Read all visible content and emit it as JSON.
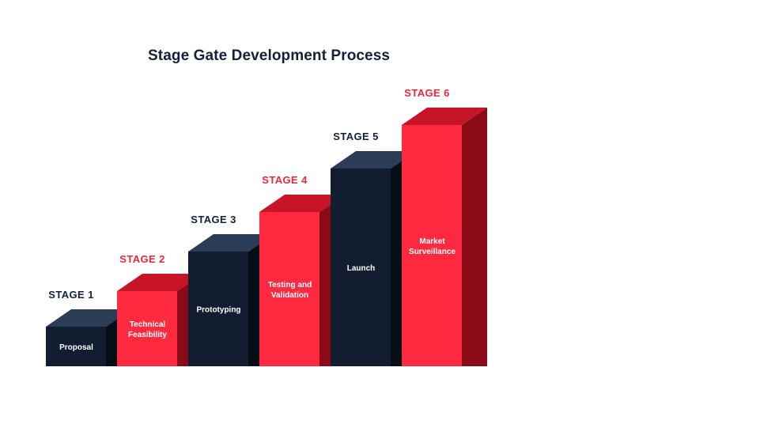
{
  "title": "Stage Gate Development Process",
  "colors": {
    "navy_front": "#121e30",
    "navy_top": "#2a3c56",
    "navy_side": "#070d17",
    "red_front": "#ff2a3f",
    "red_top": "#c81427",
    "red_side": "#8a0a17",
    "label_navy": "#13203a",
    "label_red": "#e8283c"
  },
  "stages": [
    {
      "label": "STAGE 1",
      "text": [
        "Proposal"
      ],
      "theme": "navy"
    },
    {
      "label": "STAGE 2",
      "text": [
        "Technical",
        "Feasibility"
      ],
      "theme": "red"
    },
    {
      "label": "STAGE 3",
      "text": [
        "Prototyping"
      ],
      "theme": "navy"
    },
    {
      "label": "STAGE 4",
      "text": [
        "Testing and",
        "Validation"
      ],
      "theme": "red"
    },
    {
      "label": "STAGE 5",
      "text": [
        "Launch"
      ],
      "theme": "navy"
    },
    {
      "label": "STAGE 6",
      "text": [
        "Market",
        "Surveillance"
      ],
      "theme": "red"
    }
  ]
}
